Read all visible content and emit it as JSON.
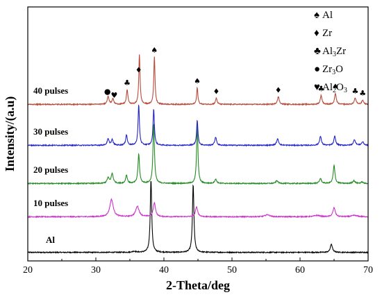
{
  "chart_data": {
    "type": "line",
    "xlabel": "2-Theta/deg",
    "ylabel": "Intensity/(a.u)",
    "xlim": [
      20,
      70
    ],
    "xticks": [
      "20",
      "30",
      "40",
      "50",
      "60",
      "70"
    ],
    "grid": false,
    "legend_placement": "top-right",
    "phases": [
      {
        "symbol": "♠",
        "label": "Al",
        "sub": "",
        "label2": "",
        "sub2": ""
      },
      {
        "symbol": "♦",
        "label": "Zr",
        "sub": "",
        "label2": "",
        "sub2": ""
      },
      {
        "symbol": "♣",
        "label": "Al",
        "sub": "3",
        "label2": "Zr",
        "sub2": ""
      },
      {
        "symbol": "●",
        "label": "Zr",
        "sub": "3",
        "label2": "O",
        "sub2": ""
      },
      {
        "symbol": "♥",
        "label": "Al",
        "sub": "2",
        "label2": "O",
        "sub2": "3"
      }
    ],
    "series": [
      {
        "name": "Al",
        "color": "#000000",
        "baseline": 0.3,
        "peaks": [
          [
            38.1,
            105,
            0.13
          ],
          [
            44.3,
            98,
            0.13
          ],
          [
            64.6,
            12,
            0.18
          ],
          [
            35.6,
            1.5,
            0.3
          ]
        ]
      },
      {
        "name": "10 pulses",
        "color": "#cc33cc",
        "baseline": 1.6,
        "peaks": [
          [
            32.3,
            25,
            0.3
          ],
          [
            36.1,
            15,
            0.3
          ],
          [
            38.6,
            20,
            0.2
          ],
          [
            44.8,
            14,
            0.2
          ],
          [
            55.2,
            3,
            0.4
          ],
          [
            65.0,
            13,
            0.2
          ],
          [
            62.5,
            2,
            0.5
          ],
          [
            68,
            2,
            0.5
          ]
        ]
      },
      {
        "name": "20 pulses",
        "color": "#228b22",
        "baseline": 1.6,
        "peaks": [
          [
            31.8,
            8,
            0.18
          ],
          [
            32.4,
            14,
            0.18
          ],
          [
            34.5,
            12,
            0.15
          ],
          [
            36.3,
            42,
            0.14
          ],
          [
            38.5,
            86,
            0.13
          ],
          [
            44.9,
            85,
            0.12
          ],
          [
            47.6,
            6,
            0.18
          ],
          [
            56.6,
            4,
            0.2
          ],
          [
            63.0,
            7,
            0.18
          ],
          [
            65.0,
            26,
            0.15
          ],
          [
            67.9,
            4,
            0.2
          ],
          [
            69.1,
            2,
            0.2
          ]
        ]
      },
      {
        "name": "30 pulses",
        "color": "#2222cc",
        "baseline": 1.6,
        "peaks": [
          [
            31.8,
            9,
            0.16
          ],
          [
            32.4,
            8,
            0.16
          ],
          [
            34.5,
            15,
            0.14
          ],
          [
            36.3,
            58,
            0.12
          ],
          [
            38.5,
            52,
            0.12
          ],
          [
            44.9,
            36,
            0.12
          ],
          [
            47.6,
            12,
            0.15
          ],
          [
            56.7,
            9,
            0.18
          ],
          [
            63.0,
            13,
            0.16
          ],
          [
            65.1,
            13,
            0.15
          ],
          [
            68.0,
            8,
            0.18
          ],
          [
            69.2,
            5,
            0.18
          ]
        ]
      },
      {
        "name": "40 pulses",
        "color": "#b84a3a",
        "baseline": 1.6,
        "peaks": [
          [
            31.8,
            12,
            0.15
          ],
          [
            32.5,
            8,
            0.15
          ],
          [
            34.6,
            21,
            0.13
          ],
          [
            36.4,
            72,
            0.11
          ],
          [
            38.6,
            68,
            0.11
          ],
          [
            44.9,
            24,
            0.11
          ],
          [
            47.7,
            9,
            0.14
          ],
          [
            56.8,
            11,
            0.16
          ],
          [
            63.1,
            13,
            0.15
          ],
          [
            65.2,
            16,
            0.14
          ],
          [
            68.1,
            9,
            0.16
          ],
          [
            69.2,
            6,
            0.16
          ]
        ]
      }
    ],
    "annotations": [
      {
        "x": 31.7,
        "symbol": "●",
        "series": "40 pulses"
      },
      {
        "x": 32.7,
        "symbol": "♥",
        "series": "40 pulses"
      },
      {
        "x": 34.6,
        "symbol": "♣",
        "series": "40 pulses"
      },
      {
        "x": 36.3,
        "symbol": "♦",
        "series": "40 pulses"
      },
      {
        "x": 38.6,
        "symbol": "♠",
        "series": "40 pulses"
      },
      {
        "x": 44.9,
        "symbol": "♠",
        "series": "40 pulses"
      },
      {
        "x": 47.7,
        "symbol": "♦",
        "series": "40 pulses"
      },
      {
        "x": 56.8,
        "symbol": "♦",
        "series": "40 pulses"
      },
      {
        "x": 63.1,
        "symbol": "♣",
        "series": "40 pulses"
      },
      {
        "x": 65.2,
        "symbol": "♠",
        "series": "40 pulses"
      },
      {
        "x": 68.1,
        "symbol": "♣",
        "series": "40 pulses"
      },
      {
        "x": 69.2,
        "symbol": "♣",
        "series": "40 pulses"
      }
    ]
  }
}
